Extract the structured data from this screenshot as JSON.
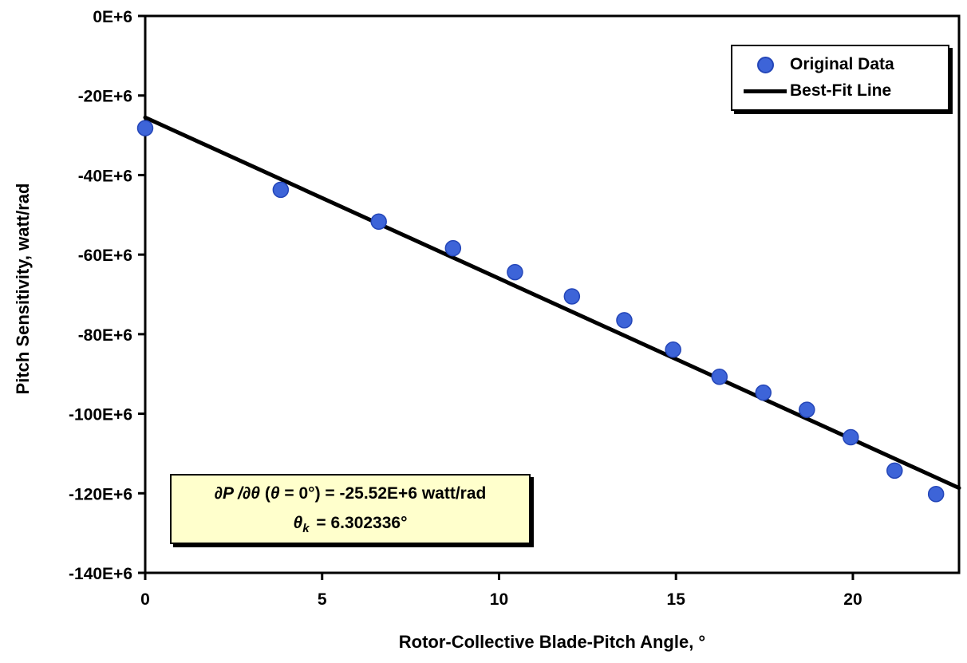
{
  "chart_data": {
    "type": "scatter",
    "title": "",
    "xlabel": "Rotor-Collective Blade-Pitch Angle, °",
    "ylabel": "Pitch Sensitivity, watt/rad",
    "xlim": [
      0,
      23
    ],
    "ylim": [
      -140,
      0
    ],
    "y_unit": "E+6 watt/rad",
    "x_ticks": [
      0,
      5,
      10,
      15,
      20
    ],
    "x_tick_labels": [
      "0",
      "5",
      "10",
      "15",
      "20"
    ],
    "y_ticks": [
      0,
      -20,
      -40,
      -60,
      -80,
      -100,
      -120,
      -140
    ],
    "y_tick_labels": [
      "0E+6",
      "-20E+6",
      "-40E+6",
      "-60E+6",
      "-80E+6",
      "-100E+6",
      "-120E+6",
      "-140E+6"
    ],
    "grid": false,
    "legend_position": "top-right",
    "series": [
      {
        "name": "Original Data",
        "type": "scatter",
        "marker_color": "#3D64D8",
        "marker_edge": "#2446B8",
        "points": [
          [
            0.0,
            -28.2
          ],
          [
            3.83,
            -43.7
          ],
          [
            6.6,
            -51.7
          ],
          [
            8.7,
            -58.4
          ],
          [
            10.45,
            -64.4
          ],
          [
            12.06,
            -70.5
          ],
          [
            13.54,
            -76.5
          ],
          [
            14.92,
            -83.9
          ],
          [
            16.23,
            -90.7
          ],
          [
            17.47,
            -94.7
          ],
          [
            18.7,
            -99.0
          ],
          [
            19.94,
            -105.9
          ],
          [
            21.18,
            -114.3
          ],
          [
            22.35,
            -120.2
          ]
        ]
      },
      {
        "name": "Best-Fit Line",
        "type": "line",
        "color": "#000000",
        "width": 5,
        "points": [
          [
            0,
            -25.52
          ],
          [
            23,
            -118.66
          ]
        ]
      }
    ],
    "annotation": {
      "bg_color": "#FFFFCC",
      "parts": {
        "l1_math": "∂P /∂θ",
        "l1_mid": " (",
        "l1_theta": "θ",
        "l1_rest": " = 0°) = -25.52E+6 watt/rad",
        "l2_theta": "θ",
        "l2_sub": "k",
        "l2_rest": " = 6.302336°"
      }
    }
  }
}
